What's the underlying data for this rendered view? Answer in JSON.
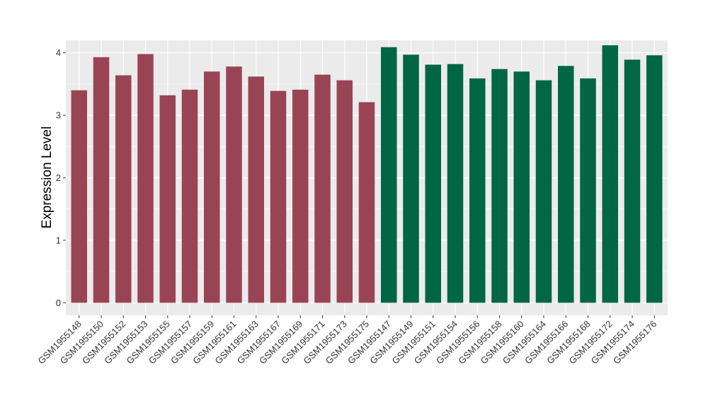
{
  "chart_data": {
    "type": "bar",
    "title": "",
    "xlabel": "",
    "ylabel": "Expression Level",
    "ylim": [
      0,
      4.2
    ],
    "yticks": [
      "0",
      "1",
      "2",
      "3",
      "4"
    ],
    "grid": true,
    "panel_background": "#EBEBEB",
    "grid_color": "#FFFFFF",
    "categories": [
      "GSM1955148",
      "GSM1955150",
      "GSM1955152",
      "GSM1955153",
      "GSM1955155",
      "GSM1955157",
      "GSM1955159",
      "GSM1955161",
      "GSM1955163",
      "GSM1955167",
      "GSM1955169",
      "GSM1955171",
      "GSM1955173",
      "GSM1955175",
      "GSM1955147",
      "GSM1955149",
      "GSM1955151",
      "GSM1955154",
      "GSM1955156",
      "GSM1955158",
      "GSM1955160",
      "GSM1955164",
      "GSM1955166",
      "GSM1955168",
      "GSM1955172",
      "GSM1955174",
      "GSM1955176"
    ],
    "values": [
      3.4,
      3.93,
      3.64,
      3.98,
      3.32,
      3.41,
      3.7,
      3.78,
      3.62,
      3.39,
      3.41,
      3.65,
      3.56,
      3.21,
      4.09,
      3.97,
      3.81,
      3.82,
      3.59,
      3.74,
      3.7,
      3.56,
      3.79,
      3.59,
      4.12,
      3.89,
      3.96
    ],
    "bar_colors": [
      "#994455",
      "#994455",
      "#994455",
      "#994455",
      "#994455",
      "#994455",
      "#994455",
      "#994455",
      "#994455",
      "#994455",
      "#994455",
      "#994455",
      "#994455",
      "#994455",
      "#006644",
      "#006644",
      "#006644",
      "#006644",
      "#006644",
      "#006644",
      "#006644",
      "#006644",
      "#006644",
      "#006644",
      "#006644",
      "#006644",
      "#006644"
    ]
  }
}
